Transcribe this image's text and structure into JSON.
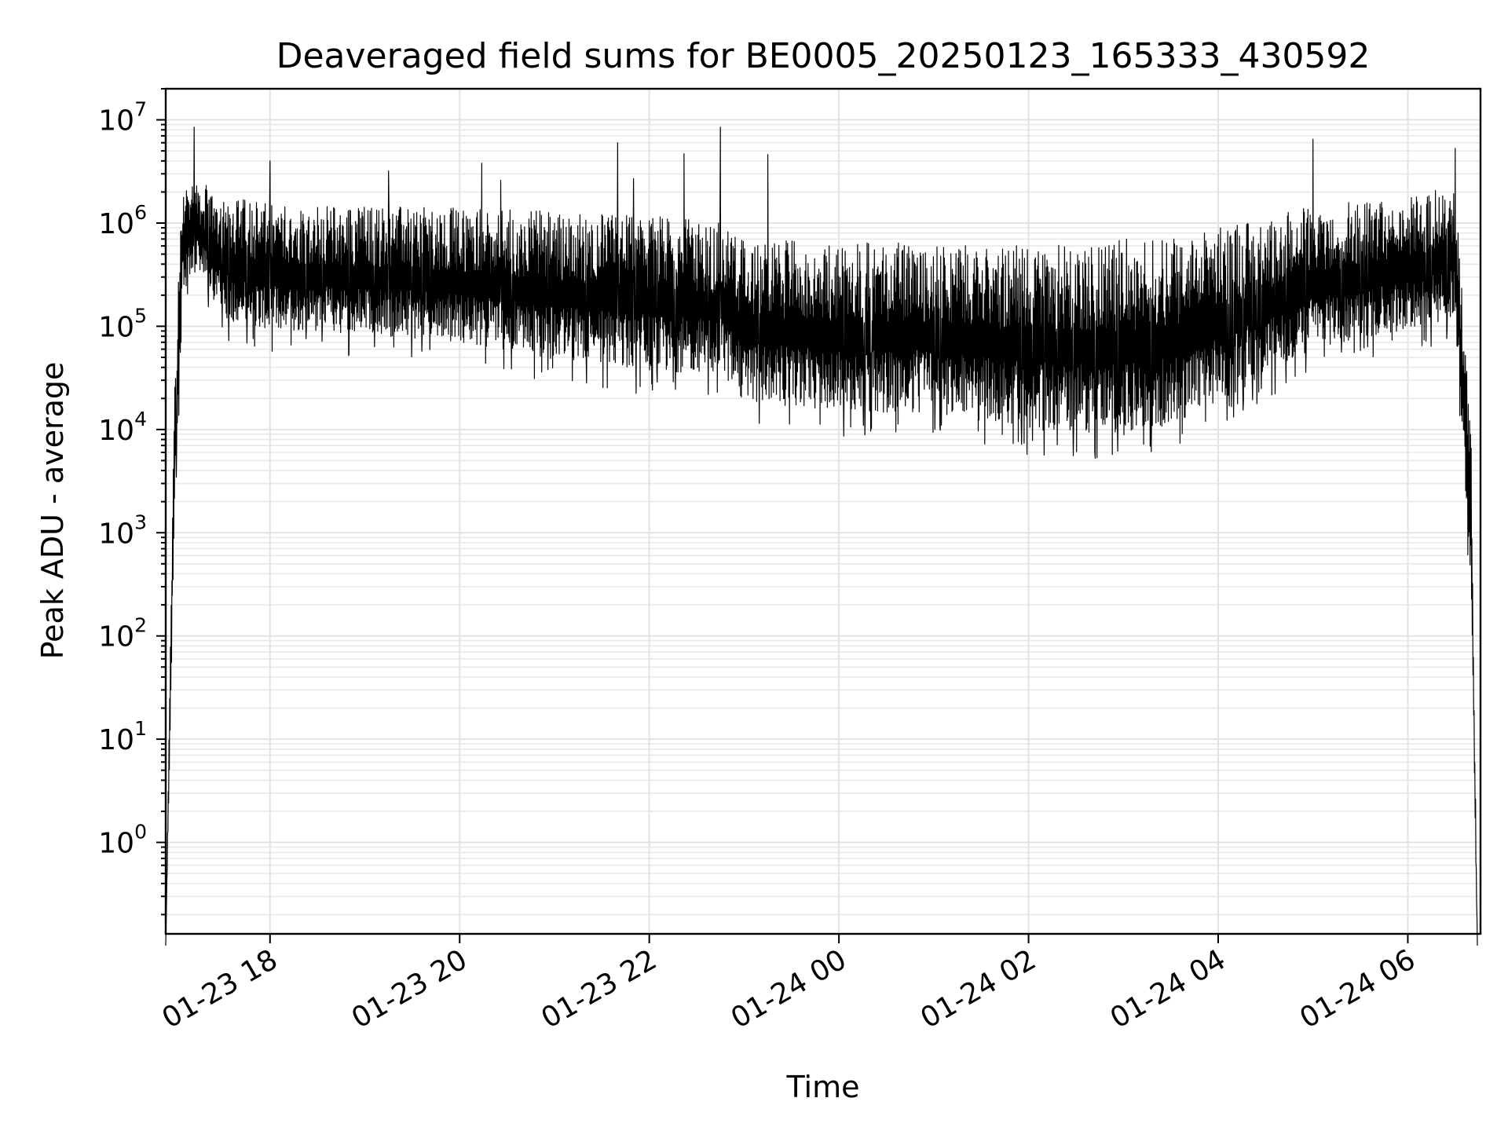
{
  "chart_data": {
    "type": "line",
    "title": "Deaveraged field sums for BE0005_20250123_165333_430592",
    "xlabel": "Time",
    "ylabel": "Peak ADU - average",
    "yscale": "log",
    "ylim": [
      0.13,
      20000000
    ],
    "xlim": [
      "2025-01-23 16:54",
      "2025-01-24 06:46"
    ],
    "grid": true,
    "x_ticks": [
      {
        "label": "01-23 18",
        "value": "2025-01-23 18:00"
      },
      {
        "label": "01-23 20",
        "value": "2025-01-23 20:00"
      },
      {
        "label": "01-23 22",
        "value": "2025-01-23 22:00"
      },
      {
        "label": "01-24 00",
        "value": "2025-01-24 00:00"
      },
      {
        "label": "01-24 02",
        "value": "2025-01-24 02:00"
      },
      {
        "label": "01-24 04",
        "value": "2025-01-24 04:00"
      },
      {
        "label": "01-24 06",
        "value": "2025-01-24 06:00"
      }
    ],
    "y_ticks": [
      {
        "base": "10",
        "exp": "0",
        "value": 1
      },
      {
        "base": "10",
        "exp": "1",
        "value": 10
      },
      {
        "base": "10",
        "exp": "2",
        "value": 100
      },
      {
        "base": "10",
        "exp": "3",
        "value": 1000
      },
      {
        "base": "10",
        "exp": "4",
        "value": 10000
      },
      {
        "base": "10",
        "exp": "5",
        "value": 100000
      },
      {
        "base": "10",
        "exp": "6",
        "value": 1000000
      },
      {
        "base": "10",
        "exp": "7",
        "value": 10000000
      }
    ],
    "series": [
      {
        "color": "#000000",
        "envelope": [
          {
            "x": "2025-01-23 16:54",
            "low": 0.1,
            "high": 0.1
          },
          {
            "x": "2025-01-23 17:00",
            "low": 2000,
            "high": 70000
          },
          {
            "x": "2025-01-23 17:05",
            "low": 200000,
            "high": 3000000
          },
          {
            "x": "2025-01-23 17:15",
            "low": 300000,
            "high": 2500000
          },
          {
            "x": "2025-01-23 17:30",
            "low": 100000,
            "high": 2000000
          },
          {
            "x": "2025-01-23 18:00",
            "low": 80000,
            "high": 1500000
          },
          {
            "x": "2025-01-23 19:00",
            "low": 70000,
            "high": 1500000
          },
          {
            "x": "2025-01-23 20:00",
            "low": 60000,
            "high": 1400000
          },
          {
            "x": "2025-01-23 21:00",
            "low": 40000,
            "high": 1300000
          },
          {
            "x": "2025-01-23 22:00",
            "low": 30000,
            "high": 1200000
          },
          {
            "x": "2025-01-23 22:45",
            "low": 30000,
            "high": 1000000
          },
          {
            "x": "2025-01-23 23:00",
            "low": 15000,
            "high": 700000
          },
          {
            "x": "2025-01-24 00:00",
            "low": 12000,
            "high": 650000
          },
          {
            "x": "2025-01-24 01:00",
            "low": 12000,
            "high": 650000
          },
          {
            "x": "2025-01-24 02:00",
            "low": 8000,
            "high": 600000
          },
          {
            "x": "2025-01-24 03:00",
            "low": 7000,
            "high": 700000
          },
          {
            "x": "2025-01-24 03:30",
            "low": 9000,
            "high": 700000
          },
          {
            "x": "2025-01-24 04:00",
            "low": 15000,
            "high": 900000
          },
          {
            "x": "2025-01-24 05:00",
            "low": 50000,
            "high": 1500000
          },
          {
            "x": "2025-01-24 06:00",
            "low": 80000,
            "high": 1800000
          },
          {
            "x": "2025-01-24 06:30",
            "low": 100000,
            "high": 2500000
          },
          {
            "x": "2025-01-24 06:40",
            "low": 200,
            "high": 10000
          },
          {
            "x": "2025-01-24 06:44",
            "low": 0.1,
            "high": 0.1
          }
        ],
        "spikes": [
          {
            "x": "2025-01-23 17:12",
            "y": 8500000
          },
          {
            "x": "2025-01-23 18:00",
            "y": 4000000
          },
          {
            "x": "2025-01-23 19:15",
            "y": 3200000
          },
          {
            "x": "2025-01-23 20:14",
            "y": 3800000
          },
          {
            "x": "2025-01-23 20:26",
            "y": 2600000
          },
          {
            "x": "2025-01-23 21:40",
            "y": 6000000
          },
          {
            "x": "2025-01-23 21:50",
            "y": 2700000
          },
          {
            "x": "2025-01-23 22:22",
            "y": 4700000
          },
          {
            "x": "2025-01-23 22:45",
            "y": 8500000
          },
          {
            "x": "2025-01-23 23:15",
            "y": 4600000
          },
          {
            "x": "2025-01-24 05:00",
            "y": 6500000
          },
          {
            "x": "2025-01-24 06:30",
            "y": 5300000
          }
        ]
      }
    ]
  }
}
